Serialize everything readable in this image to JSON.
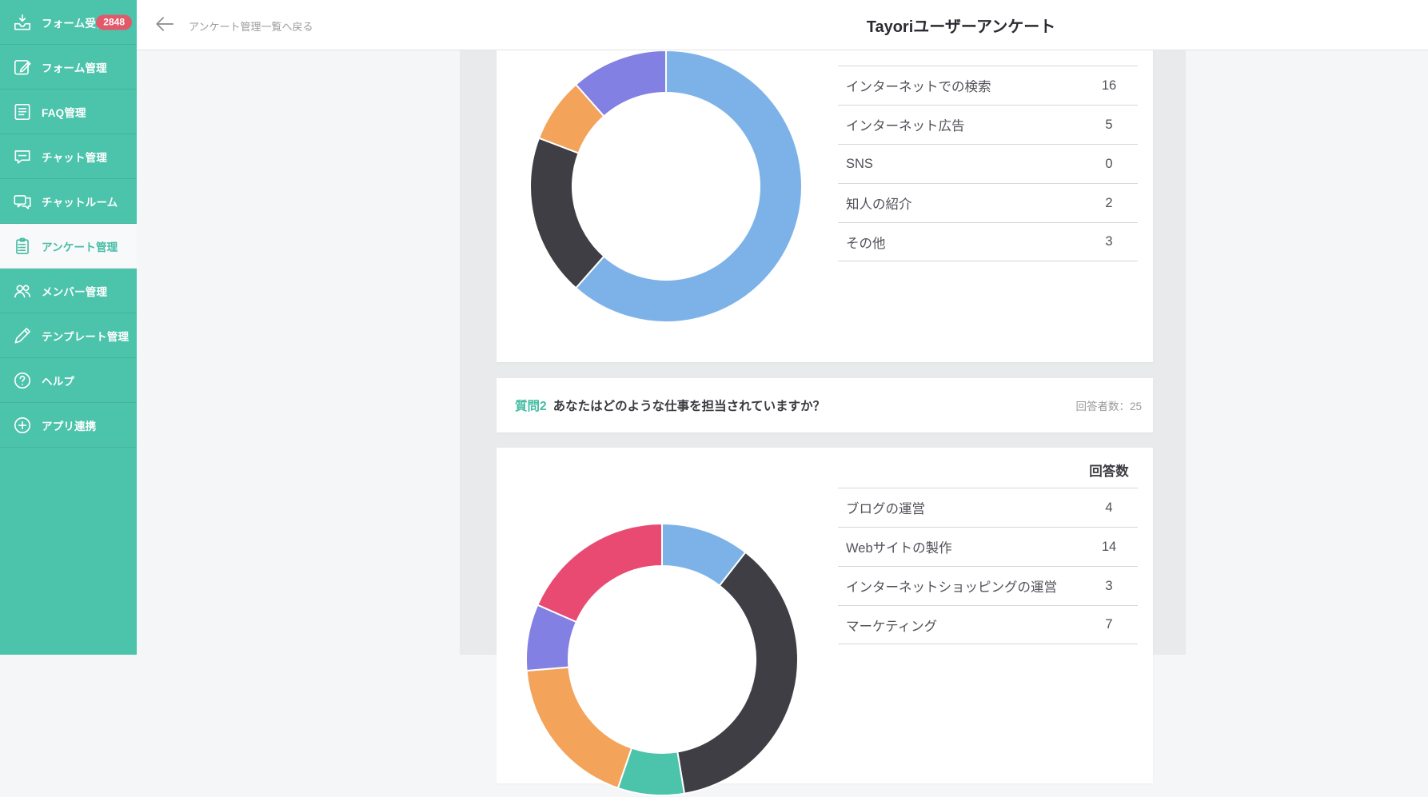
{
  "sidebar": {
    "items": [
      {
        "key": "inbox",
        "label": "フォーム受信箱",
        "icon": "inbox-icon",
        "badge": "2848",
        "selected": false
      },
      {
        "key": "form",
        "label": "フォーム管理",
        "icon": "form-edit-icon",
        "badge": null,
        "selected": false
      },
      {
        "key": "faq",
        "label": "FAQ管理",
        "icon": "faq-doc-icon",
        "badge": null,
        "selected": false
      },
      {
        "key": "chat",
        "label": "チャット管理",
        "icon": "chat-bubble-icon",
        "badge": null,
        "selected": false
      },
      {
        "key": "chatroom",
        "label": "チャットルーム",
        "icon": "chat-room-icon",
        "badge": null,
        "selected": false
      },
      {
        "key": "survey",
        "label": "アンケート管理",
        "icon": "clipboard-icon",
        "badge": null,
        "selected": true
      },
      {
        "key": "members",
        "label": "メンバー管理",
        "icon": "members-icon",
        "badge": null,
        "selected": false
      },
      {
        "key": "template",
        "label": "テンプレート管理",
        "icon": "pencil-icon",
        "badge": null,
        "selected": false
      },
      {
        "key": "help",
        "label": "ヘルプ",
        "icon": "question-circle-icon",
        "badge": null,
        "selected": false
      },
      {
        "key": "apps",
        "label": "アプリ連携",
        "icon": "plus-circle-icon",
        "badge": null,
        "selected": false
      }
    ]
  },
  "header": {
    "back_label": "アンケート管理一覧へ戻る",
    "title": "Tayoriユーザーアンケート"
  },
  "colors": {
    "sidebar_green": "#4cc3ab",
    "selected_text_green": "#45bca4",
    "badge_red": "#e2596b",
    "frame_gray": "#e9eaeb",
    "page_bg": "#f5f6f7",
    "table_border": "#d7d7d7",
    "palette": [
      "#7DB2E8",
      "#3F3E45",
      "#4CC3AB",
      "#F3A35A",
      "#8280E2",
      "#E84A72"
    ]
  },
  "chart_data": [
    {
      "type": "donut",
      "categories": [
        "インターネットでの検索",
        "インターネット広告",
        "SNS",
        "知人の紹介",
        "その他"
      ],
      "values": [
        16,
        5,
        0,
        2,
        3
      ],
      "segment_colors": [
        "#7DB2E8",
        "#3F3E45",
        "#4CC3AB",
        "#F3A35A",
        "#8280E2"
      ],
      "legend_position": "table-right"
    },
    {
      "type": "donut",
      "question_tag": "質問2",
      "question": "あなたはどのような仕事を担当されていますか？",
      "respondents_label": "回答者数：25",
      "value_column_header": "回答数",
      "categories": [
        "ブログの運営",
        "Webサイトの製作",
        "インターネットショッピングの運営",
        "マーケティング"
      ],
      "values": [
        4,
        14,
        3,
        7
      ],
      "offscreen_values": [
        3,
        7
      ],
      "segment_colors": [
        "#7DB2E8",
        "#3F3E45",
        "#4CC3AB",
        "#F3A35A",
        "#8280E2",
        "#E84A72"
      ],
      "legend_position": "table-right"
    }
  ]
}
